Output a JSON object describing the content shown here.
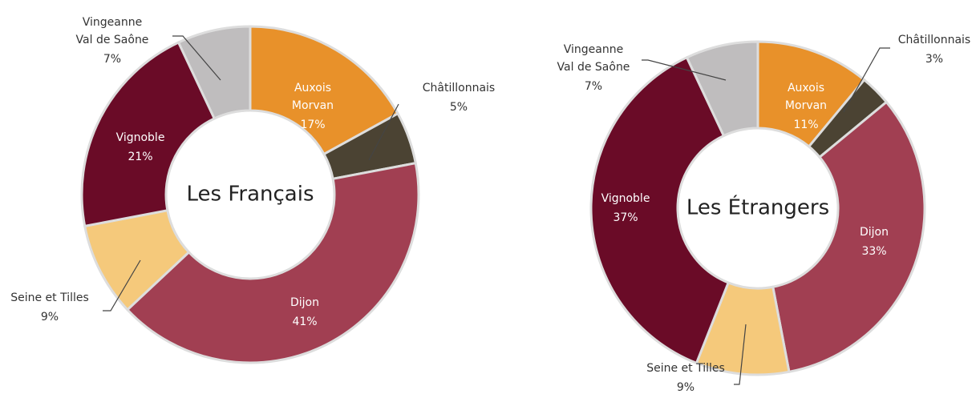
{
  "chart_data": [
    {
      "type": "pie",
      "title": "Les Français",
      "categories": [
        "Auxois\nMorvan",
        "Châtillonnais",
        "Dijon",
        "Seine et Tilles",
        "Vignoble",
        "Vingeanne\nVal de Saône"
      ],
      "values": [
        17,
        5,
        41,
        9,
        21,
        7
      ],
      "value_labels": [
        "17%",
        "5%",
        "41%",
        "9%",
        "21%",
        "7%"
      ],
      "colors": [
        "#e8912a",
        "#4b4333",
        "#a13f52",
        "#f5c97b",
        "#6a0b27",
        "#bfbdbe"
      ]
    },
    {
      "type": "pie",
      "title": "Les Étrangers",
      "categories": [
        "Auxois\nMorvan",
        "Châtillonnais",
        "Dijon",
        "Seine et Tilles",
        "Vignoble",
        "Vingeanne\nVal de Saône"
      ],
      "values": [
        11,
        3,
        33,
        9,
        37,
        7
      ],
      "value_labels": [
        "11%",
        "3%",
        "33%",
        "9%",
        "37%",
        "7%"
      ],
      "colors": [
        "#e8912a",
        "#4b4333",
        "#a13f52",
        "#f5c97b",
        "#6a0b27",
        "#bfbdbe"
      ]
    }
  ]
}
